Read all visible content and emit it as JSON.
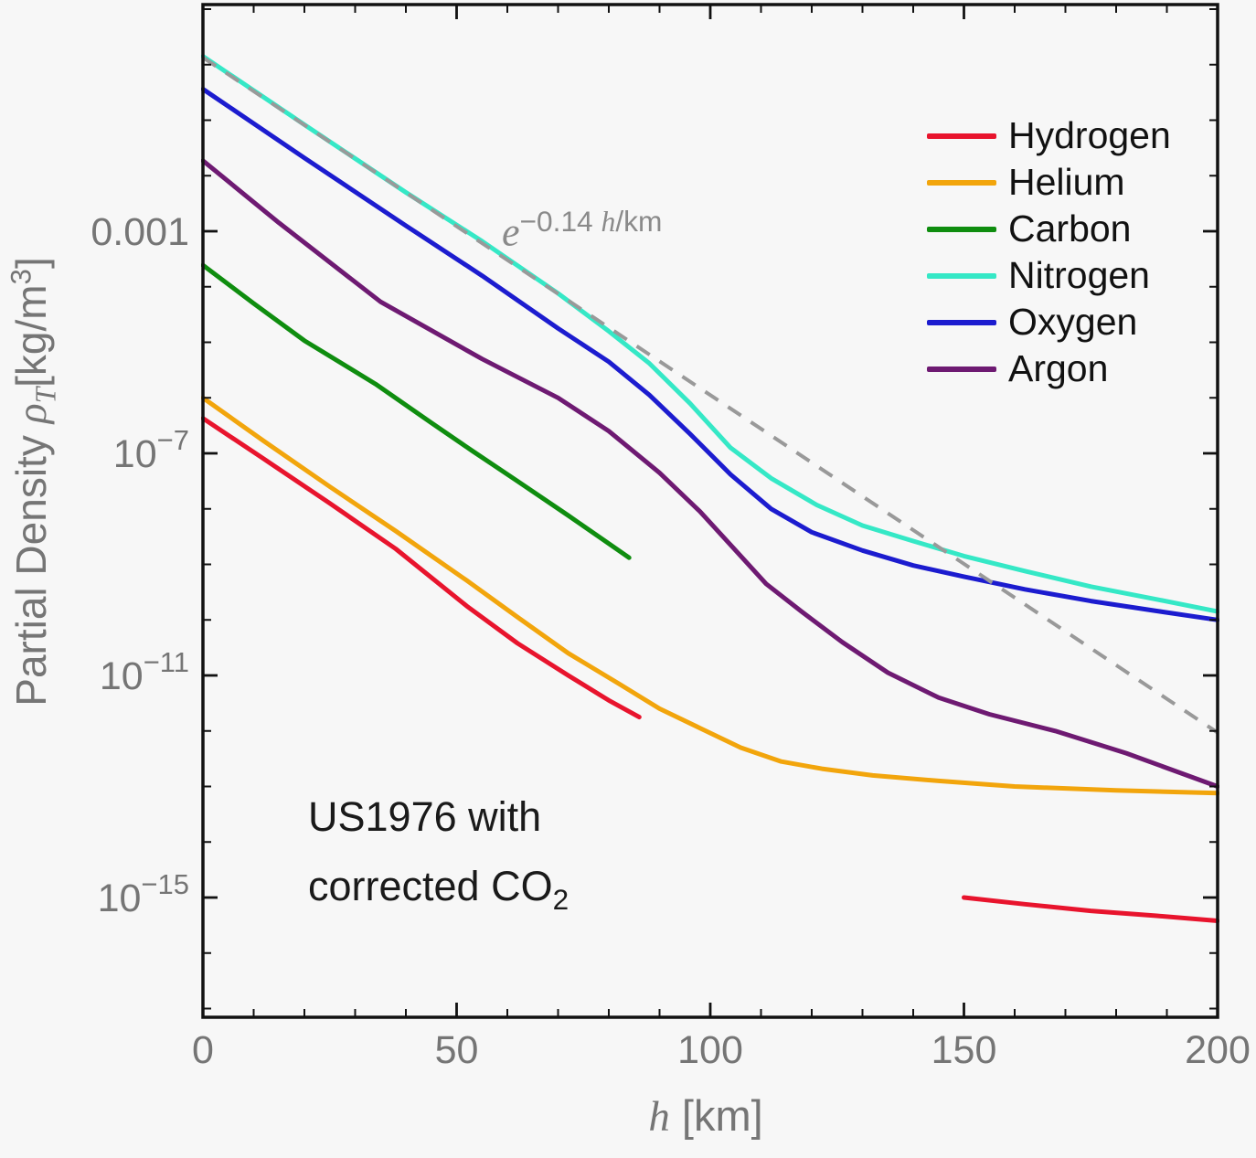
{
  "figure": {
    "background": "#f7f7f7",
    "frame_color": "#111111",
    "tick_label_color": "#757575",
    "annotation_gray": "#8a8a8a",
    "model_text_color": "#1a1a1a"
  },
  "axes": {
    "x": {
      "label": "h [km]",
      "label_var": "h",
      "label_unit": " [km]",
      "min": 0,
      "max": 200,
      "major_ticks": [
        0,
        50,
        100,
        150,
        200
      ],
      "minor_tick_step": 10
    },
    "y": {
      "label": "Partial Density ρT [kg/m³]",
      "label_prefix": "Partial Density ",
      "label_symbol": "ρ",
      "label_symbol_sub": "T",
      "label_unit_pre": "[kg/m",
      "label_unit_sup": "3",
      "label_unit_post": "]",
      "scale": "log",
      "decade_tick_min": -17,
      "decade_tick_max": 1,
      "labeled_ticks": [
        {
          "log10": -3,
          "label": "0.001"
        },
        {
          "log10": -7,
          "label": "10^−7"
        },
        {
          "log10": -11,
          "label": "10^−11"
        },
        {
          "log10": -15,
          "label": "10^−15"
        }
      ]
    }
  },
  "annotations": {
    "exp": {
      "base": "e",
      "exp_coeff": "−0.14 ",
      "exp_var": "h",
      "exp_unit": "/km"
    },
    "model": {
      "line1": "US1976 with",
      "line2": "corrected CO",
      "line2_sub": "2"
    }
  },
  "chart_data": {
    "type": "line",
    "title": "",
    "xlabel": "h [km]",
    "ylabel": "Partial Density ρT [kg/m³]",
    "x_range": [
      0,
      200
    ],
    "y_scale": "log10",
    "y_range_log10": [
      -17.2,
      1.1
    ],
    "grid": false,
    "legend_position": "upper right",
    "note": "y values are log10 of partial density in kg/m^3",
    "series": [
      {
        "name": "Hydrogen",
        "color": "#e8142d",
        "in_legend": true,
        "dashed": false,
        "segments": [
          [
            [
              0,
              -6.37
            ],
            [
              12,
              -7.1
            ],
            [
              25,
              -7.9
            ],
            [
              38,
              -8.72
            ],
            [
              52,
              -9.75
            ],
            [
              62,
              -10.42
            ],
            [
              72,
              -11.0
            ],
            [
              80,
              -11.45
            ],
            [
              86,
              -11.75
            ]
          ],
          [
            [
              150,
              -15.0
            ],
            [
              162,
              -15.12
            ],
            [
              175,
              -15.24
            ],
            [
              188,
              -15.33
            ],
            [
              200,
              -15.42
            ]
          ]
        ]
      },
      {
        "name": "Helium",
        "color": "#f2a50c",
        "in_legend": true,
        "dashed": false,
        "segments": [
          [
            [
              0,
              -6.0
            ],
            [
              12,
              -6.78
            ],
            [
              25,
              -7.6
            ],
            [
              38,
              -8.4
            ],
            [
              52,
              -9.29
            ],
            [
              62,
              -9.95
            ],
            [
              72,
              -10.6
            ],
            [
              82,
              -11.15
            ],
            [
              90,
              -11.6
            ],
            [
              98,
              -11.95
            ],
            [
              106,
              -12.3
            ],
            [
              114,
              -12.55
            ],
            [
              122,
              -12.68
            ],
            [
              132,
              -12.8
            ],
            [
              145,
              -12.9
            ],
            [
              160,
              -13.0
            ],
            [
              180,
              -13.07
            ],
            [
              200,
              -13.12
            ]
          ]
        ]
      },
      {
        "name": "Carbon",
        "color": "#0f8d0f",
        "in_legend": true,
        "dashed": false,
        "segments": [
          [
            [
              0,
              -3.61
            ],
            [
              10,
              -4.3
            ],
            [
              20,
              -4.97
            ],
            [
              34,
              -5.75
            ],
            [
              45,
              -6.45
            ],
            [
              53,
              -6.95
            ],
            [
              62,
              -7.5
            ],
            [
              72,
              -8.12
            ],
            [
              78,
              -8.5
            ],
            [
              84,
              -8.88
            ]
          ]
        ]
      },
      {
        "name": "Nitrogen",
        "color": "#35e8c6",
        "in_legend": true,
        "dashed": false,
        "segments": [
          [
            [
              0,
              0.15
            ],
            [
              20,
              -1.08
            ],
            [
              40,
              -2.3
            ],
            [
              55,
              -3.18
            ],
            [
              70,
              -4.12
            ],
            [
              80,
              -4.8
            ],
            [
              88,
              -5.38
            ],
            [
              96,
              -6.1
            ],
            [
              104,
              -6.9
            ],
            [
              112,
              -7.45
            ],
            [
              121,
              -7.93
            ],
            [
              130,
              -8.3
            ],
            [
              140,
              -8.58
            ],
            [
              150,
              -8.85
            ],
            [
              162,
              -9.12
            ],
            [
              175,
              -9.4
            ],
            [
              188,
              -9.63
            ],
            [
              200,
              -9.85
            ]
          ]
        ]
      },
      {
        "name": "Oxygen",
        "color": "#1c1ccf",
        "in_legend": true,
        "dashed": false,
        "segments": [
          [
            [
              0,
              -0.44
            ],
            [
              20,
              -1.68
            ],
            [
              40,
              -2.9
            ],
            [
              55,
              -3.8
            ],
            [
              70,
              -4.75
            ],
            [
              80,
              -5.35
            ],
            [
              88,
              -5.95
            ],
            [
              96,
              -6.65
            ],
            [
              104,
              -7.38
            ],
            [
              112,
              -8.0
            ],
            [
              120,
              -8.42
            ],
            [
              130,
              -8.75
            ],
            [
              140,
              -9.02
            ],
            [
              150,
              -9.22
            ],
            [
              162,
              -9.45
            ],
            [
              175,
              -9.66
            ],
            [
              188,
              -9.84
            ],
            [
              200,
              -10.0
            ]
          ]
        ]
      },
      {
        "name": "Argon",
        "color": "#6e1a72",
        "in_legend": true,
        "dashed": false,
        "segments": [
          [
            [
              0,
              -1.73
            ],
            [
              15,
              -2.85
            ],
            [
              35,
              -4.27
            ],
            [
              55,
              -5.3
            ],
            [
              70,
              -6.0
            ],
            [
              80,
              -6.6
            ],
            [
              90,
              -7.35
            ],
            [
              98,
              -8.05
            ],
            [
              105,
              -8.75
            ],
            [
              111,
              -9.35
            ],
            [
              118,
              -9.85
            ],
            [
              126,
              -10.4
            ],
            [
              135,
              -10.95
            ],
            [
              145,
              -11.4
            ],
            [
              155,
              -11.7
            ],
            [
              168,
              -12.0
            ],
            [
              182,
              -12.4
            ],
            [
              200,
              -13.0
            ]
          ]
        ]
      },
      {
        "name": "exp(−0.14 h/km) reference",
        "color": "#999999",
        "in_legend": false,
        "dashed": true,
        "segments": [
          [
            [
              0,
              0.13
            ],
            [
              200,
              -12.03
            ]
          ]
        ]
      }
    ]
  }
}
